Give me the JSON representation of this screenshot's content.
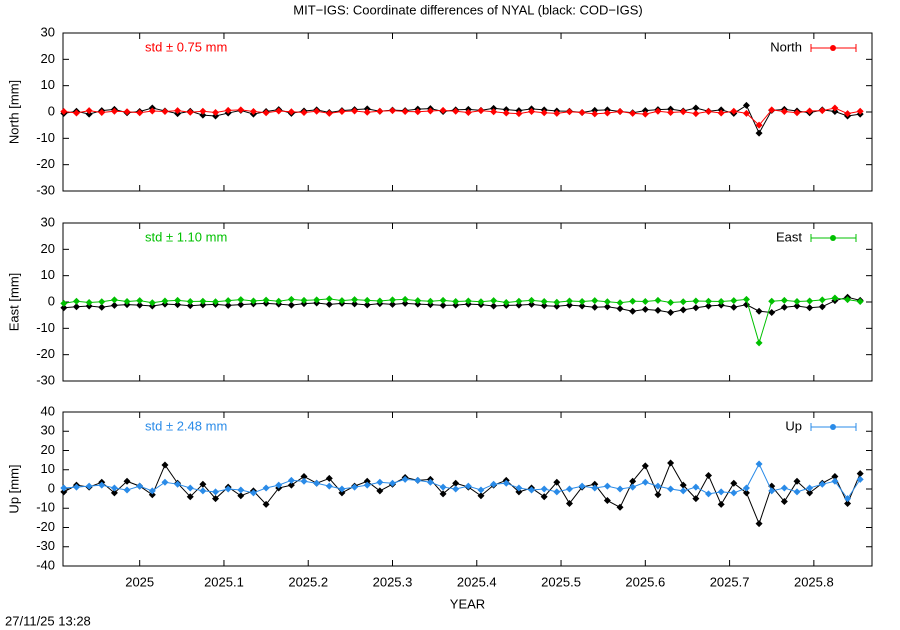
{
  "title": "MIT−IGS: Coordinate differences of NYAL (black: COD−IGS)",
  "timestamp": "27/11/25 13:28",
  "chart_data": [
    {
      "type": "line",
      "ylabel": "North [mm]",
      "annotation": "std ± 0.75 mm",
      "legend": "top-right",
      "xlim": [
        2024.909,
        2025.869
      ],
      "xticks": [
        2025,
        2025.1,
        2025.2,
        2025.3,
        2025.4,
        2025.5,
        2025.6,
        2025.7,
        2025.8
      ],
      "ylim": [
        -30,
        30
      ],
      "yticks": [
        -30,
        -20,
        -10,
        0,
        10,
        20,
        30
      ],
      "x": [
        2024.91,
        2024.925,
        2024.94,
        2024.955,
        2024.97,
        2024.985,
        2025,
        2025.015,
        2025.03,
        2025.045,
        2025.06,
        2025.075,
        2025.09,
        2025.105,
        2025.12,
        2025.135,
        2025.15,
        2025.165,
        2025.18,
        2025.195,
        2025.21,
        2025.225,
        2025.24,
        2025.255,
        2025.27,
        2025.285,
        2025.3,
        2025.315,
        2025.33,
        2025.345,
        2025.36,
        2025.375,
        2025.39,
        2025.405,
        2025.42,
        2025.435,
        2025.45,
        2025.465,
        2025.48,
        2025.495,
        2025.51,
        2025.525,
        2025.54,
        2025.555,
        2025.57,
        2025.585,
        2025.6,
        2025.615,
        2025.63,
        2025.645,
        2025.66,
        2025.675,
        2025.69,
        2025.705,
        2025.72,
        2025.735,
        2025.75,
        2025.765,
        2025.78,
        2025.795,
        2025.81,
        2025.825,
        2025.84,
        2025.855
      ],
      "series": [
        {
          "color": "#000000",
          "values": [
            -0.5,
            0.3,
            -0.8,
            0.5,
            1.0,
            -0.3,
            0.2,
            1.5,
            0.4,
            -0.6,
            0.3,
            -1.2,
            -1.5,
            -0.4,
            0.6,
            -0.8,
            0.2,
            0.9,
            -0.5,
            0.4,
            0.8,
            -0.2,
            0.5,
            0.9,
            1.2,
            0.3,
            0.7,
            0.5,
            1.1,
            1.3,
            0.2,
            0.8,
            1.0,
            0.6,
            1.4,
            0.9,
            0.5,
            1.2,
            0.8,
            0.4,
            0.3,
            -0.2,
            0.6,
            0.8,
            0.2,
            -0.3,
            0.5,
            0.9,
            1.1,
            0.4,
            1.5,
            0.3,
            0.8,
            -0.5,
            2.5,
            -8,
            0.6,
            1.0,
            0.4,
            -0.3,
            0.8,
            0.2,
            -1.5,
            -0.8
          ]
        },
        {
          "name": "North",
          "color": "#ff0000",
          "values": [
            0.2,
            -0.4,
            0.5,
            -0.2,
            0.3,
            0.1,
            -0.3,
            0.4,
            0.2,
            0.5,
            -0.1,
            0.3,
            -0.2,
            0.6,
            0.8,
            0.2,
            -0.3,
            0.4,
            0.1,
            -0.2,
            0.3,
            -0.5,
            0.2,
            0.4,
            -0.1,
            0.3,
            0.5,
            0.2,
            0.1,
            0.4,
            0.6,
            0.3,
            -0.2,
            0.5,
            0.1,
            -0.4,
            -0.6,
            0.2,
            -0.3,
            -0.5,
            0.1,
            -0.2,
            -0.7,
            -0.4,
            0.2,
            -0.5,
            -0.8,
            0.3,
            -0.2,
            0.1,
            -0.6,
            0.2,
            -0.4,
            0.3,
            -0.5,
            -5,
            0.8,
            0.2,
            -0.3,
            0.4,
            0.5,
            1.5,
            -0.6,
            0.3
          ]
        }
      ]
    },
    {
      "type": "line",
      "ylabel": "East [mm]",
      "annotation": "std ± 1.10 mm",
      "legend": "top-right",
      "xlim": [
        2024.909,
        2025.869
      ],
      "xticks": [
        2025,
        2025.1,
        2025.2,
        2025.3,
        2025.4,
        2025.5,
        2025.6,
        2025.7,
        2025.8
      ],
      "ylim": [
        -30,
        30
      ],
      "yticks": [
        -30,
        -20,
        -10,
        0,
        10,
        20,
        30
      ],
      "x": [
        2024.91,
        2024.925,
        2024.94,
        2024.955,
        2024.97,
        2024.985,
        2025,
        2025.015,
        2025.03,
        2025.045,
        2025.06,
        2025.075,
        2025.09,
        2025.105,
        2025.12,
        2025.135,
        2025.15,
        2025.165,
        2025.18,
        2025.195,
        2025.21,
        2025.225,
        2025.24,
        2025.255,
        2025.27,
        2025.285,
        2025.3,
        2025.315,
        2025.33,
        2025.345,
        2025.36,
        2025.375,
        2025.39,
        2025.405,
        2025.42,
        2025.435,
        2025.45,
        2025.465,
        2025.48,
        2025.495,
        2025.51,
        2025.525,
        2025.54,
        2025.555,
        2025.57,
        2025.585,
        2025.6,
        2025.615,
        2025.63,
        2025.645,
        2025.66,
        2025.675,
        2025.69,
        2025.705,
        2025.72,
        2025.735,
        2025.75,
        2025.765,
        2025.78,
        2025.795,
        2025.81,
        2025.825,
        2025.84,
        2025.855
      ],
      "series": [
        {
          "color": "#000000",
          "values": [
            -2.2,
            -1.8,
            -1.5,
            -2.0,
            -1.3,
            -1.0,
            -1.2,
            -1.5,
            -0.8,
            -1.0,
            -1.4,
            -1.1,
            -0.9,
            -1.3,
            -1.0,
            -0.7,
            -0.5,
            -0.8,
            -1.2,
            -0.6,
            -0.4,
            -0.9,
            -0.5,
            -0.7,
            -1.1,
            -0.6,
            -0.9,
            -0.5,
            -0.8,
            -1.0,
            -1.3,
            -1.2,
            -0.8,
            -1.0,
            -1.5,
            -1.3,
            -1.2,
            -0.9,
            -1.4,
            -1.6,
            -1.2,
            -1.5,
            -2.0,
            -1.8,
            -2.5,
            -3.5,
            -2.8,
            -3.2,
            -4.0,
            -3.0,
            -2.2,
            -1.5,
            -1.2,
            -2.0,
            -1.0,
            -3.5,
            -4.0,
            -2.0,
            -1.5,
            -2.2,
            -1.8,
            0.5,
            1.8,
            0.6
          ]
        },
        {
          "name": "East",
          "color": "#00c000",
          "values": [
            -0.5,
            0.3,
            -0.2,
            0.1,
            0.8,
            0.2,
            0.5,
            -0.3,
            0.4,
            0.6,
            0.2,
            0.3,
            0.1,
            0.5,
            0.9,
            0.4,
            0.7,
            0.3,
            1.0,
            0.6,
            0.8,
            1.2,
            0.5,
            0.9,
            0.6,
            0.4,
            0.8,
            1.0,
            0.5,
            0.3,
            0.6,
            0.2,
            0.4,
            0.1,
            0.5,
            -0.2,
            0.3,
            0.6,
            0.2,
            -0.1,
            0.4,
            0.2,
            0.5,
            0.1,
            -0.3,
            0.3,
            0.2,
            0.6,
            -0.2,
            0.1,
            0.4,
            0.3,
            0.2,
            0.5,
            1.0,
            -15.5,
            0.3,
            0.6,
            0.2,
            0.4,
            0.8,
            1.5,
            0.9,
            0.2
          ]
        }
      ]
    },
    {
      "type": "line",
      "ylabel": "Up [mm]",
      "annotation": "std ± 2.48 mm",
      "legend": "top-right",
      "xlabel": "YEAR",
      "xlim": [
        2024.909,
        2025.869
      ],
      "xticks": [
        2025,
        2025.1,
        2025.2,
        2025.3,
        2025.4,
        2025.5,
        2025.6,
        2025.7,
        2025.8
      ],
      "ylim": [
        -40,
        40
      ],
      "yticks": [
        -40,
        -30,
        -20,
        -10,
        0,
        10,
        20,
        30,
        40
      ],
      "x": [
        2024.91,
        2024.925,
        2024.94,
        2024.955,
        2024.97,
        2024.985,
        2025,
        2025.015,
        2025.03,
        2025.045,
        2025.06,
        2025.075,
        2025.09,
        2025.105,
        2025.12,
        2025.135,
        2025.15,
        2025.165,
        2025.18,
        2025.195,
        2025.21,
        2025.225,
        2025.24,
        2025.255,
        2025.27,
        2025.285,
        2025.3,
        2025.315,
        2025.33,
        2025.345,
        2025.36,
        2025.375,
        2025.39,
        2025.405,
        2025.42,
        2025.435,
        2025.45,
        2025.465,
        2025.48,
        2025.495,
        2025.51,
        2025.525,
        2025.54,
        2025.555,
        2025.57,
        2025.585,
        2025.6,
        2025.615,
        2025.63,
        2025.645,
        2025.66,
        2025.675,
        2025.69,
        2025.705,
        2025.72,
        2025.735,
        2025.75,
        2025.765,
        2025.78,
        2025.795,
        2025.81,
        2025.825,
        2025.84,
        2025.855
      ],
      "series": [
        {
          "color": "#000000",
          "values": [
            -1.5,
            2.0,
            1.0,
            3.5,
            -2.0,
            4.0,
            1.5,
            -3.0,
            12.5,
            3.0,
            -4.0,
            2.5,
            -5.0,
            1.0,
            -3.5,
            -1.0,
            -8.0,
            0.5,
            2.0,
            6.5,
            3.0,
            5.5,
            -2.0,
            1.5,
            4.0,
            -1.0,
            2.5,
            6.0,
            4.5,
            5.0,
            -2.5,
            3.0,
            1.0,
            -3.5,
            2.0,
            4.5,
            -1.5,
            0.5,
            -4.0,
            3.5,
            -7.5,
            1.0,
            2.5,
            -6.0,
            -9.5,
            4.0,
            12.0,
            -3.0,
            13.5,
            2.0,
            -5.0,
            7.0,
            -8.0,
            3.0,
            -2.0,
            -18.0,
            1.5,
            -6.5,
            4.0,
            -2.0,
            3.0,
            6.5,
            -7.5,
            8.0
          ]
        },
        {
          "name": "Up",
          "color": "#2a8be8",
          "values": [
            0.5,
            1.0,
            1.5,
            2.0,
            0.5,
            -0.5,
            1.5,
            -1.0,
            3.5,
            2.5,
            0.5,
            -1.0,
            -1.5,
            0.0,
            -0.5,
            -2.0,
            0.5,
            2.0,
            4.5,
            4.0,
            3.0,
            1.5,
            0.0,
            1.0,
            2.0,
            3.5,
            3.0,
            5.0,
            4.5,
            3.5,
            1.0,
            0.0,
            1.5,
            -0.5,
            2.5,
            3.0,
            0.5,
            -0.5,
            0.0,
            -1.5,
            0.0,
            1.5,
            0.5,
            1.5,
            0.0,
            1.0,
            3.5,
            1.5,
            0.0,
            -1.0,
            1.0,
            -2.5,
            -1.5,
            -2.0,
            0.5,
            13.0,
            -1.0,
            0.5,
            -1.5,
            0.5,
            2.5,
            4.0,
            -5.0,
            5.0
          ]
        }
      ]
    }
  ]
}
